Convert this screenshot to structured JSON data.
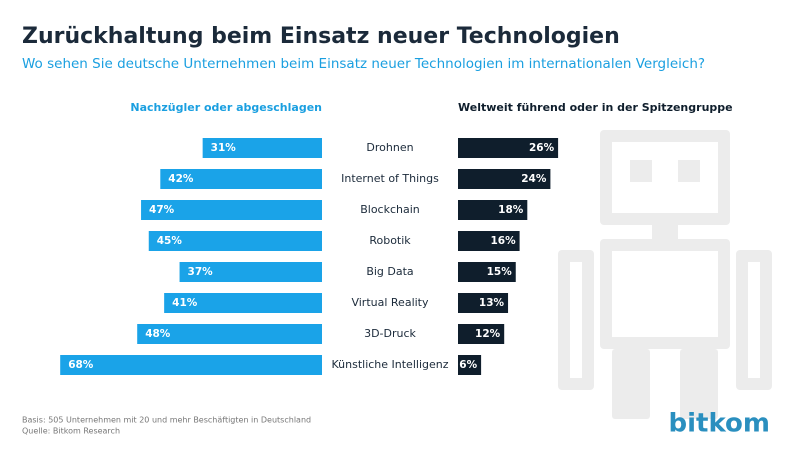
{
  "chart_data": {
    "type": "diverging_bar",
    "title": "Zurückhaltung beim Einsatz neuer Technologien",
    "subtitle": "Wo sehen Sie deutsche Unternehmen beim Einsatz neuer Technologien im internationalen Vergleich?",
    "categories": [
      "Drohnen",
      "Internet of Things",
      "Blockchain",
      "Robotik",
      "Big Data",
      "Virtual Reality",
      "3D-Druck",
      "Künstliche Intelligenz"
    ],
    "series": [
      {
        "name": "Nachzügler oder abgeschlagen",
        "color": "#1aa3e8",
        "values": [
          31,
          42,
          47,
          45,
          37,
          41,
          48,
          68
        ],
        "value_labels": [
          "31%",
          "42%",
          "47%",
          "45%",
          "37%",
          "41%",
          "48%",
          "68%"
        ]
      },
      {
        "name": "Weltweit führend oder in der Spitzengruppe",
        "color": "#0f1e2c",
        "values": [
          26,
          24,
          18,
          16,
          15,
          13,
          12,
          6
        ],
        "value_labels": [
          "26%",
          "24%",
          "18%",
          "16%",
          "15%",
          "13%",
          "12%",
          "6%"
        ]
      }
    ],
    "footnotes": [
      "Basis: 505 Unternehmen mit 20 und mehr Beschäftigten in Deutschland",
      "Quelle: Bitkom Research"
    ],
    "logo": "bitkom"
  }
}
